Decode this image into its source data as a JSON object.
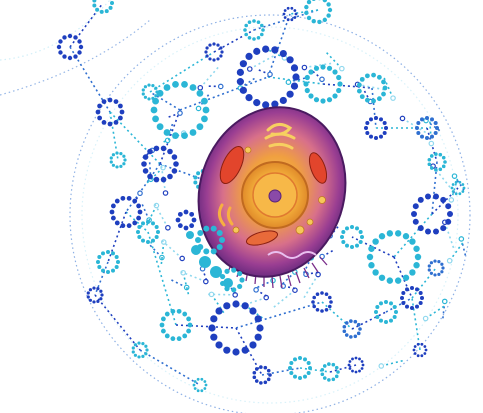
{
  "illustration": {
    "subject": "cell",
    "network": "molecule-network",
    "colors": {
      "background": "#ffffff",
      "deep_blue": "#1f3fbf",
      "mid_blue": "#2f6fd0",
      "cyan": "#2bb6d6",
      "light_cyan": "#8fd8ee",
      "cell_outer": "#6a2a86",
      "cell_mid": "#c05a8a",
      "cell_inner": "#f2a23a",
      "nucleus": "#f6c04a",
      "nucleolus": "#8a4aa8"
    }
  }
}
